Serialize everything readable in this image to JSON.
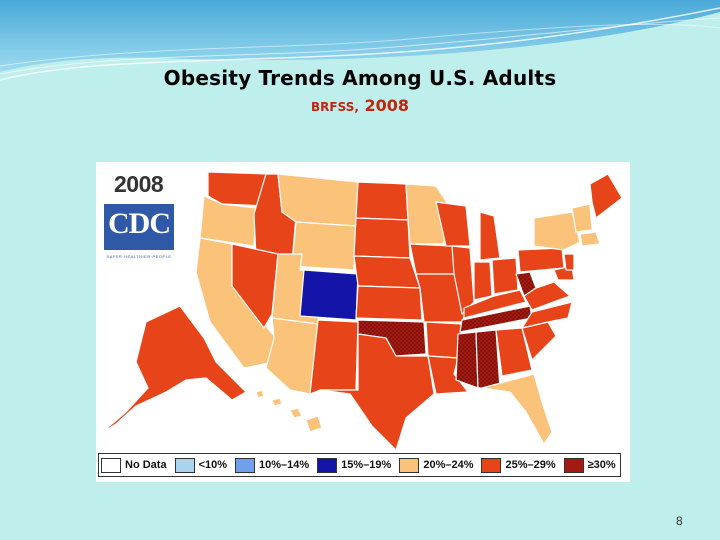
{
  "slide": {
    "title": "Obesity Trends Among U.S. Adults",
    "subtitle_source": "BRFSS,",
    "subtitle_year": "2008",
    "page_number": "8"
  },
  "map": {
    "year_label": "2008",
    "logo_text": "CDC",
    "logo_tagline": "SAFER·HEALTHIER·PEOPLE",
    "legend": [
      {
        "label": "No Data",
        "color": "#ffffff"
      },
      {
        "label": "<10%",
        "color": "#a9d4f0"
      },
      {
        "label": "10%–14%",
        "color": "#6fa0ec"
      },
      {
        "label": "15%–19%",
        "color": "#1414a8"
      },
      {
        "label": "20%–24%",
        "color": "#fbc27a"
      },
      {
        "label": "25%–29%",
        "color": "#e8441a"
      },
      {
        "label": "≥30%",
        "color": "#a51a10"
      }
    ]
  },
  "colors": {
    "background": "#bfefec",
    "subtitle": "#c0250e",
    "band": "#6bbfe6"
  }
}
